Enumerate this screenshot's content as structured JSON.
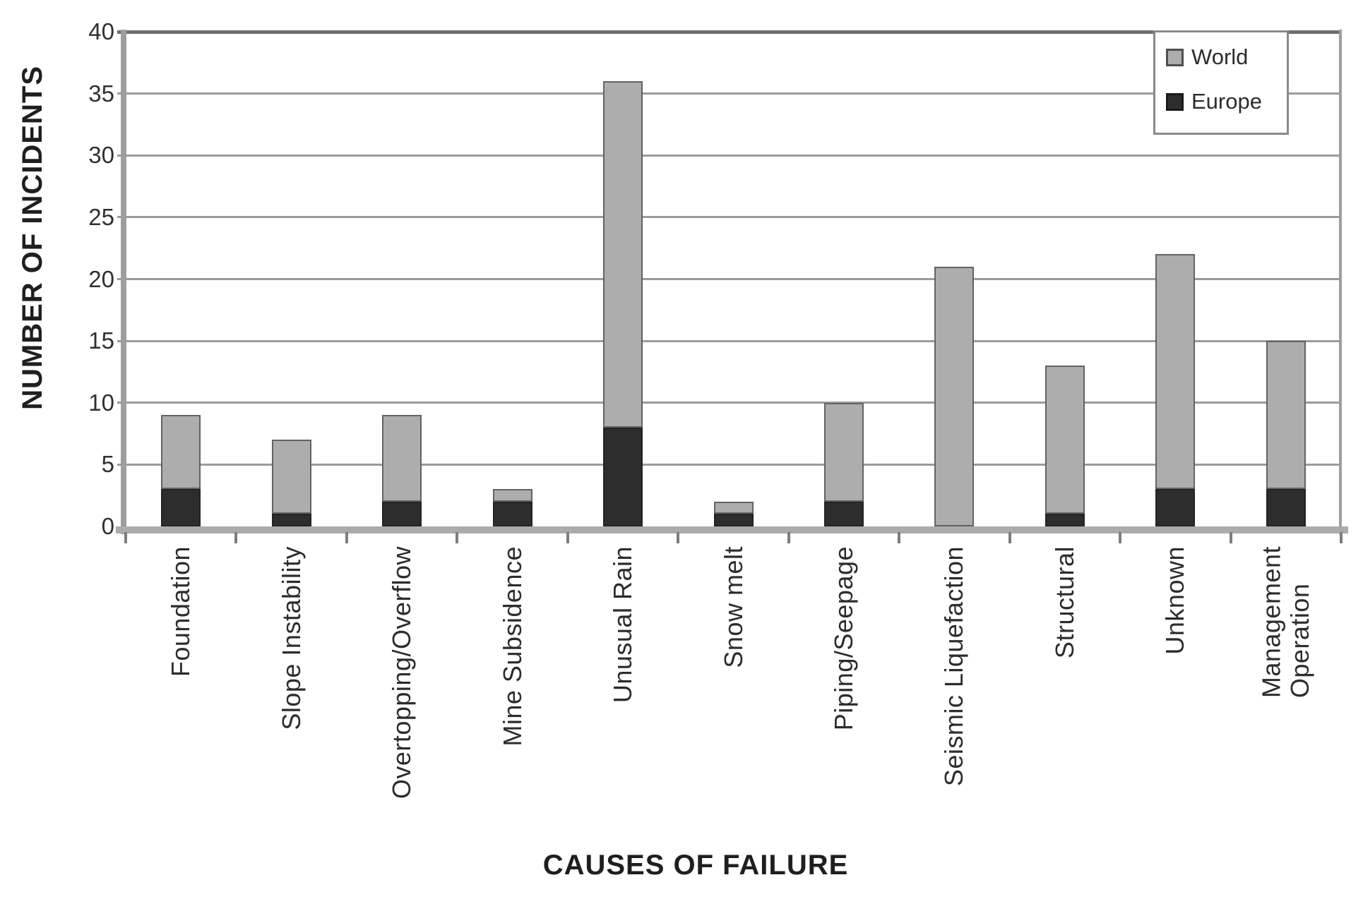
{
  "chart_data": {
    "type": "bar",
    "stacked": true,
    "title": "",
    "xlabel": "CAUSES OF FAILURE",
    "ylabel": "NUMBER OF INCIDENTS",
    "ylim": [
      0,
      40
    ],
    "ytick_interval": 5,
    "grid": "horizontal",
    "legend_position": "top-right",
    "categories": [
      "Foundation",
      "Slope Instability",
      "Overtopping/Overflow",
      "Mine Subsidence",
      "Unusual Rain",
      "Snow melt",
      "Piping/Seepage",
      "Seismic Liquefaction",
      "Structural",
      "Unknown",
      "Management\nOperation"
    ],
    "series": [
      {
        "name": "World",
        "color": "#adadad",
        "role": "total-bar-height",
        "values": [
          9,
          7,
          9,
          3,
          36,
          2,
          10,
          21,
          13,
          22,
          15
        ]
      },
      {
        "name": "Europe",
        "color": "#2d2d2d",
        "role": "bottom-dark-segment",
        "values": [
          3,
          1,
          2,
          2,
          8,
          1,
          2,
          0,
          1,
          3,
          3
        ]
      }
    ]
  },
  "axes": {
    "x_title": "CAUSES OF FAILURE",
    "y_title": "NUMBER OF INCIDENTS",
    "y_tick_labels": [
      "0",
      "5",
      "10",
      "15",
      "20",
      "25",
      "30",
      "35",
      "40"
    ]
  },
  "legend": {
    "items": [
      {
        "label": "World",
        "color": "#adadad"
      },
      {
        "label": "Europe",
        "color": "#2d2d2d"
      }
    ]
  },
  "colors": {
    "background": "#ffffff",
    "world_fill": "#adadad",
    "world_border": "#636363",
    "europe_fill": "#2d2d2d",
    "gridline": "#9b9b9b",
    "plot_top_line": "#6f6f6f",
    "axis_line": "#9e9e9e",
    "baseline": "#ababab",
    "tick": "#7d7d7d",
    "text": "#2c2c2c"
  }
}
